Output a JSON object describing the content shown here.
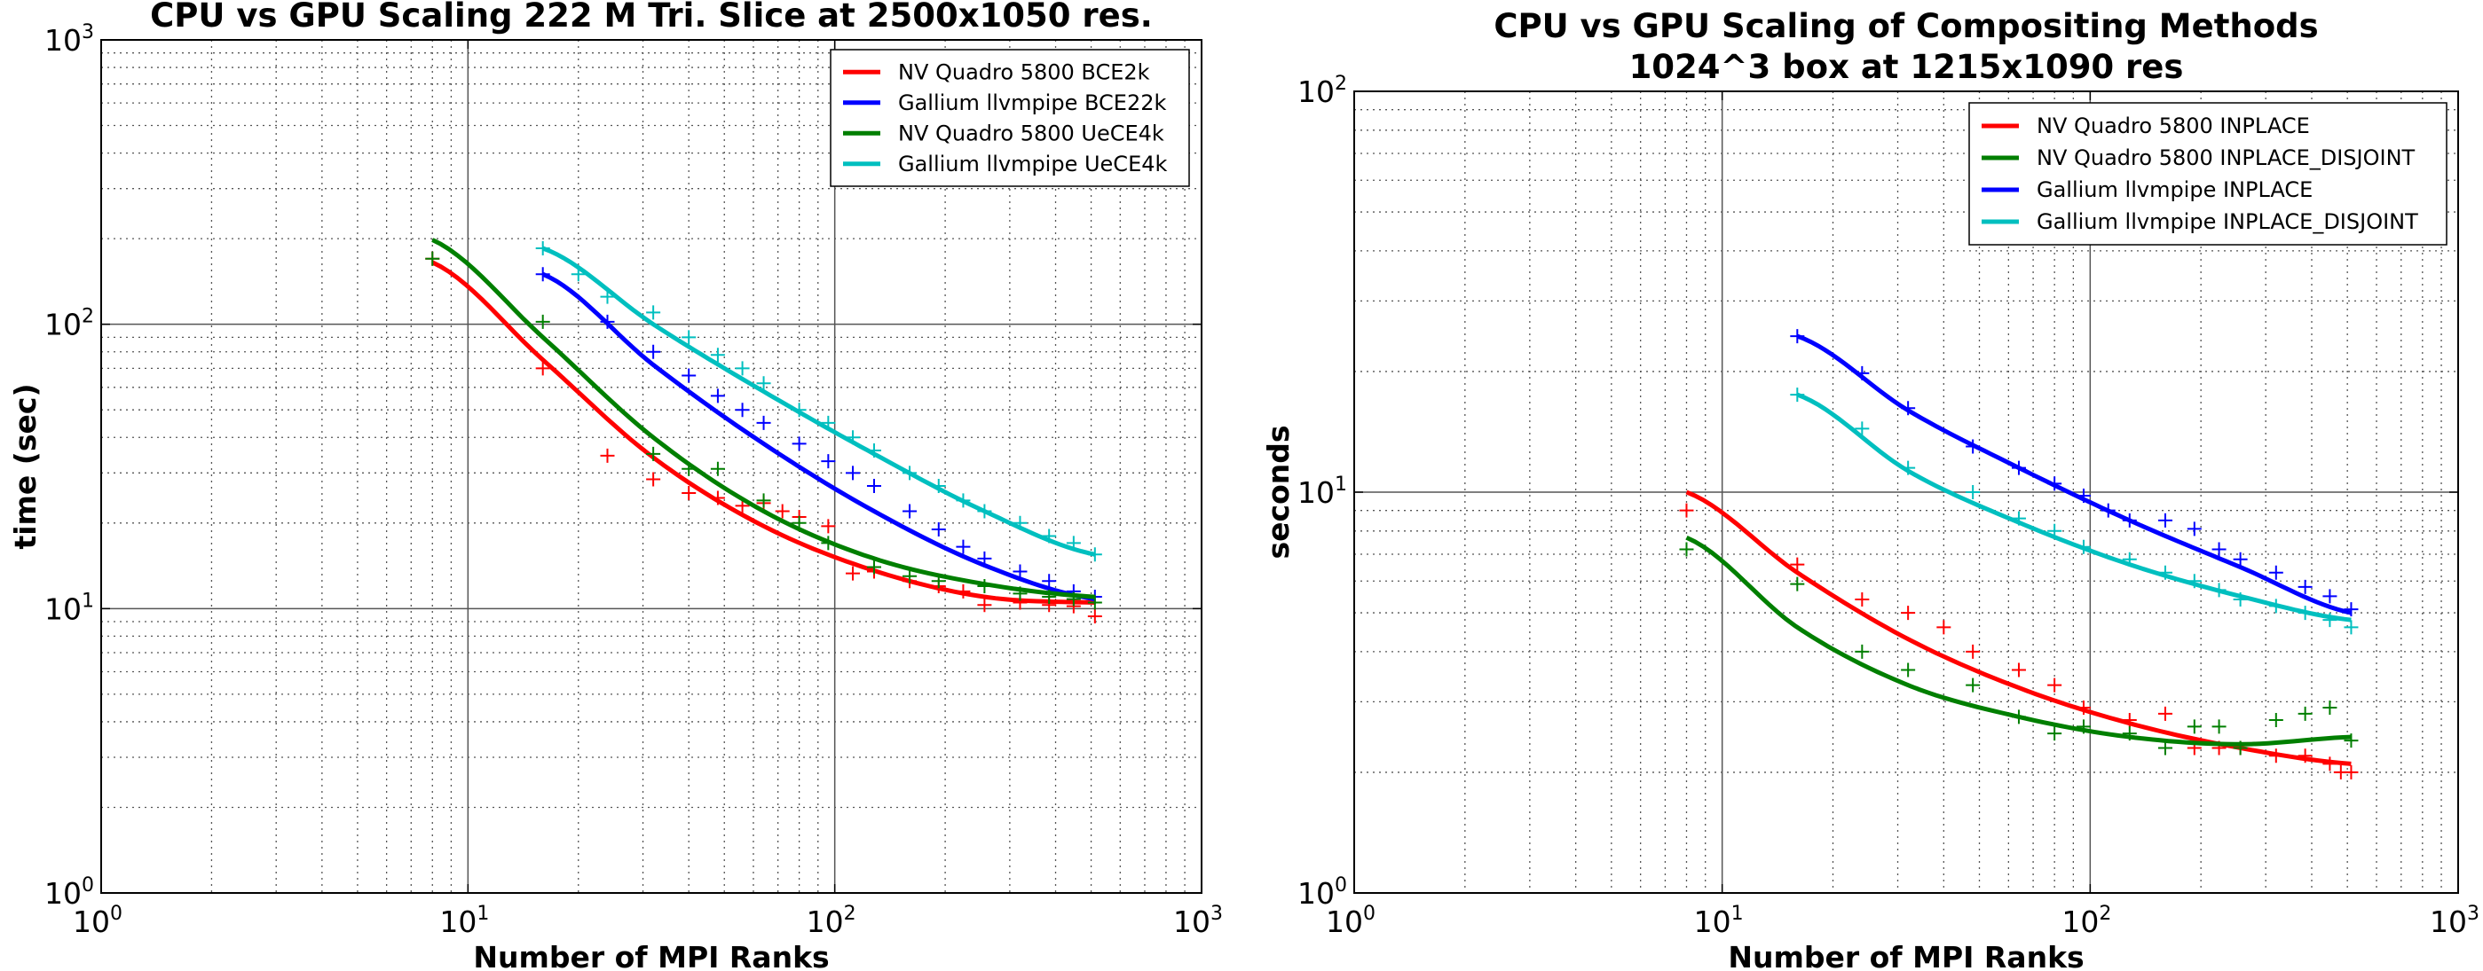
{
  "colors": {
    "red": "#ff0000",
    "blue": "#0000ff",
    "green": "#007f00",
    "cyan": "#00bfbf",
    "major_grid": "#555555",
    "minor_grid": "#555555"
  },
  "chart_data": [
    {
      "type": "line",
      "title": "CPU vs GPU Scaling 222 M Tri. Slice at 2500x1050 res.",
      "subtitle": "",
      "xlabel": "Number of MPI Ranks",
      "ylabel": "time (sec)",
      "xscale": "log",
      "yscale": "log",
      "xlim": [
        1,
        1000
      ],
      "ylim": [
        1,
        1000
      ],
      "x_tick_labels": [
        "10^0",
        "10^1",
        "10^2",
        "10^3"
      ],
      "y_tick_labels": [
        "10^0",
        "10^1",
        "10^2",
        "10^3"
      ],
      "grid": "major solid, minor dotted",
      "legend_position": "upper right",
      "series": [
        {
          "name": "NV Quadro 5800 BCE2k",
          "color": "red",
          "fit": {
            "x": [
              8,
              16,
              32,
              64,
              128,
              256,
              512
            ],
            "y": [
              165,
              75,
              34,
              19.5,
              13.6,
              11,
              10.5
            ]
          },
          "points": {
            "x": [
              8,
              16,
              24,
              32,
              40,
              48,
              56,
              64,
              72,
              80,
              96,
              112,
              128,
              160,
              192,
              224,
              256,
              320,
              384,
              448,
              512
            ],
            "y": [
              170,
              70,
              34.5,
              28.5,
              25.5,
              24.5,
              23,
              23.5,
              22,
              21,
              19.5,
              13.3,
              13.5,
              12.5,
              12,
              11.5,
              10.3,
              10.5,
              10.3,
              10.2,
              9.4
            ]
          }
        },
        {
          "name": "Gallium llvmpipe BCE22k",
          "color": "blue",
          "fit": {
            "x": [
              16,
              32,
              64,
              128,
              256,
              512
            ],
            "y": [
              150,
              72,
              38,
              22,
              14.2,
              10.8
            ]
          },
          "points": {
            "x": [
              16,
              24,
              32,
              40,
              48,
              56,
              64,
              80,
              96,
              112,
              128,
              160,
              192,
              224,
              256,
              320,
              384,
              448,
              512
            ],
            "y": [
              150,
              102,
              80,
              66,
              56,
              50,
              45,
              38,
              33,
              30,
              27,
              22,
              19,
              16.5,
              15,
              13.5,
              12.5,
              11.5,
              11
            ]
          }
        },
        {
          "name": "NV Quadro 5800 UeCE4k",
          "color": "green",
          "fit": {
            "x": [
              8,
              16,
              32,
              64,
              128,
              256,
              512
            ],
            "y": [
              198,
              90,
              40,
              22,
              15,
              12.2,
              11
            ]
          },
          "points": {
            "x": [
              8,
              16,
              32,
              40,
              48,
              64,
              80,
              96,
              128,
              160,
              192,
              256,
              320,
              384,
              448,
              512
            ],
            "y": [
              170,
              102,
              35,
              31,
              31,
              24,
              20,
              17,
              14,
              13,
              12.5,
              12,
              11.3,
              11,
              10.8,
              10.5
            ]
          }
        },
        {
          "name": "Gallium llvmpipe UeCE4k",
          "color": "cyan",
          "fit": {
            "x": [
              16,
              32,
              64,
              128,
              256,
              512
            ],
            "y": [
              185,
              100,
              58,
              35,
              22,
              15.5
            ]
          },
          "points": {
            "x": [
              16,
              20,
              24,
              32,
              40,
              48,
              56,
              64,
              80,
              96,
              112,
              128,
              160,
              192,
              224,
              256,
              320,
              384,
              448,
              512
            ],
            "y": [
              185,
              150,
              125,
              110,
              90,
              78,
              70,
              62,
              50,
              45,
              40,
              36,
              30,
              27,
              24,
              22,
              20,
              18,
              17,
              15.5
            ]
          }
        }
      ]
    },
    {
      "type": "line",
      "title": "CPU vs GPU Scaling of Compositing Methods",
      "subtitle": "1024^3 box at 1215x1090 res",
      "xlabel": "Number of MPI Ranks",
      "ylabel": "seconds",
      "xscale": "log",
      "yscale": "log",
      "xlim": [
        1,
        1000
      ],
      "ylim": [
        1,
        100
      ],
      "x_tick_labels": [
        "10^0",
        "10^1",
        "10^2",
        "10^3"
      ],
      "y_tick_labels": [
        "10^0",
        "10^1",
        "10^2"
      ],
      "grid": "major solid, minor dotted",
      "legend_position": "upper right",
      "series": [
        {
          "name": "NV Quadro 5800 INPLACE",
          "color": "red",
          "fit": {
            "x": [
              8,
              16,
              32,
              64,
              128,
              256,
              512
            ],
            "y": [
              10,
              6.3,
              4.3,
              3.25,
              2.65,
              2.3,
              2.1
            ]
          },
          "points": {
            "x": [
              8,
              16,
              24,
              32,
              40,
              48,
              64,
              80,
              96,
              128,
              160,
              192,
              224,
              256,
              320,
              384,
              448,
              480,
              512
            ],
            "y": [
              9.0,
              6.6,
              5.4,
              5.0,
              4.6,
              4.0,
              3.6,
              3.3,
              2.9,
              2.7,
              2.8,
              2.3,
              2.3,
              2.3,
              2.2,
              2.2,
              2.1,
              2.0,
              2.0
            ]
          }
        },
        {
          "name": "NV Quadro 5800 INPLACE_DISJOINT",
          "color": "green",
          "fit": {
            "x": [
              8,
              16,
              32,
              64,
              128,
              256,
              512
            ],
            "y": [
              7.7,
              4.6,
              3.3,
              2.75,
              2.45,
              2.35,
              2.45
            ]
          },
          "points": {
            "x": [
              8,
              16,
              24,
              32,
              48,
              64,
              80,
              96,
              128,
              160,
              192,
              224,
              256,
              320,
              384,
              448,
              512
            ],
            "y": [
              7.2,
              5.9,
              4.0,
              3.6,
              3.3,
              2.75,
              2.5,
              2.6,
              2.5,
              2.3,
              2.6,
              2.6,
              2.3,
              2.7,
              2.8,
              2.9,
              2.4
            ]
          }
        },
        {
          "name": "Gallium llvmpipe INPLACE",
          "color": "blue",
          "fit": {
            "x": [
              16,
              32,
              64,
              128,
              256,
              512
            ],
            "y": [
              24.5,
              16,
              11.5,
              8.5,
              6.5,
              5.0
            ]
          },
          "points": {
            "x": [
              16,
              24,
              32,
              48,
              64,
              80,
              96,
              112,
              128,
              160,
              192,
              224,
              256,
              320,
              384,
              448,
              512
            ],
            "y": [
              24.5,
              19.8,
              16.2,
              13,
              11.5,
              10.5,
              9.8,
              9.0,
              8.5,
              8.5,
              8.1,
              7.2,
              6.8,
              6.3,
              5.8,
              5.5,
              5.1
            ]
          }
        },
        {
          "name": "Gallium llvmpipe INPLACE_DISJOINT",
          "color": "cyan",
          "fit": {
            "x": [
              16,
              32,
              64,
              128,
              256,
              512
            ],
            "y": [
              17.5,
              11.3,
              8.4,
              6.6,
              5.5,
              4.8
            ]
          },
          "points": {
            "x": [
              16,
              24,
              32,
              48,
              64,
              80,
              96,
              128,
              160,
              192,
              224,
              256,
              320,
              384,
              448,
              512
            ],
            "y": [
              17.5,
              14.4,
              11.5,
              10,
              8.6,
              8.0,
              7.3,
              6.8,
              6.3,
              6.0,
              5.7,
              5.4,
              5.2,
              5.0,
              4.8,
              4.6
            ]
          }
        }
      ]
    }
  ]
}
